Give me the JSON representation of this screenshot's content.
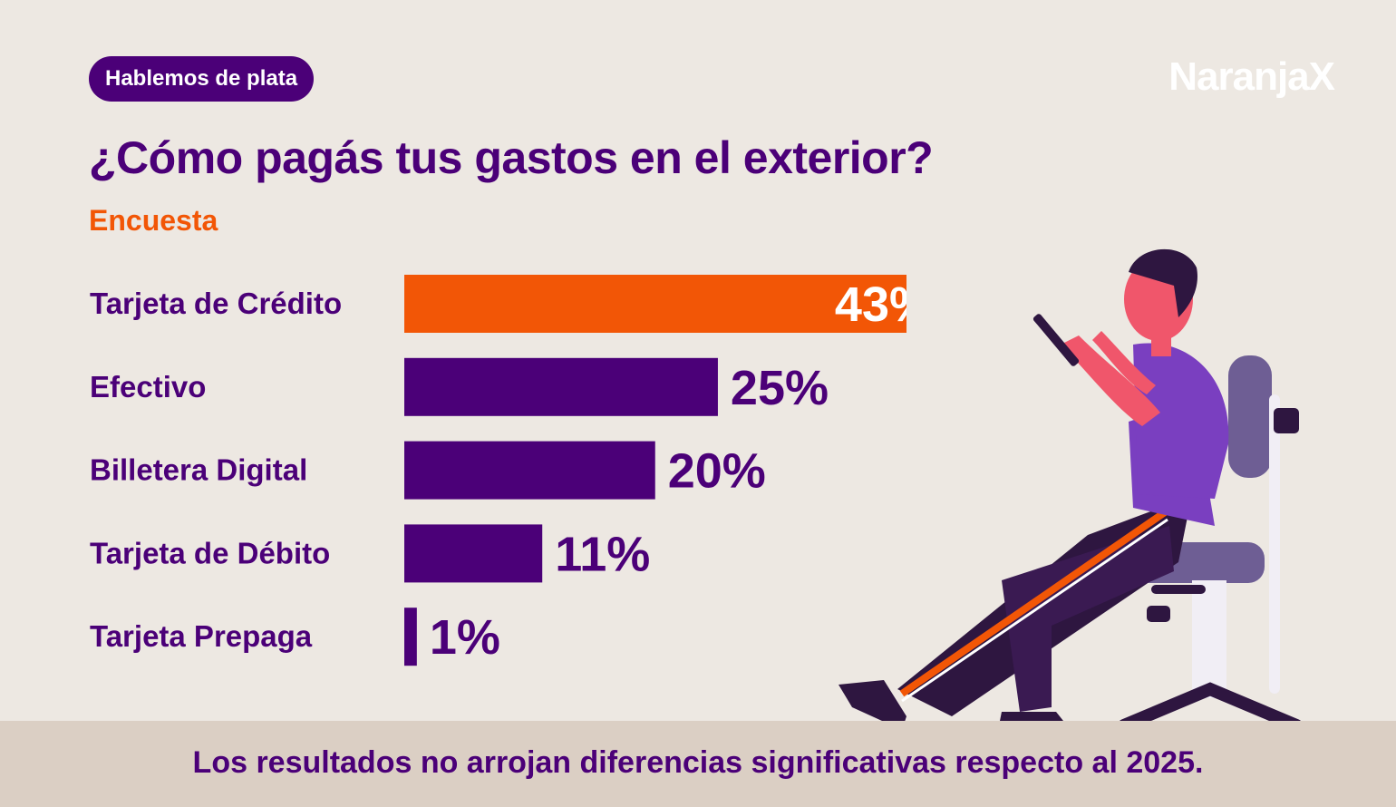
{
  "header": {
    "tag": "Hablemos de plata",
    "logo": "NaranjaX",
    "title": "¿Cómo pagás tus gastos en el exterior?",
    "subtitle": "Encuesta"
  },
  "footer": {
    "note": "Los resultados no arrojan diferencias significativas  respecto al 2025."
  },
  "colors": {
    "highlight": "#f25606",
    "bar": "#4b0078",
    "text": "#4b0078",
    "background": "#ede8e2"
  },
  "illustration": "person-with-phone-on-chair",
  "chart_data": {
    "type": "bar",
    "orientation": "horizontal",
    "categories": [
      "Tarjeta de Crédito",
      "Efectivo",
      "Billetera Digital",
      "Tarjeta de Débito",
      "Tarjeta Prepaga"
    ],
    "values": [
      43,
      25,
      20,
      11,
      1
    ],
    "labels": [
      "43%",
      "25%",
      "20%",
      "11%",
      "1%"
    ],
    "highlight_index": 0,
    "xlim": [
      0,
      43
    ],
    "grid": false
  }
}
